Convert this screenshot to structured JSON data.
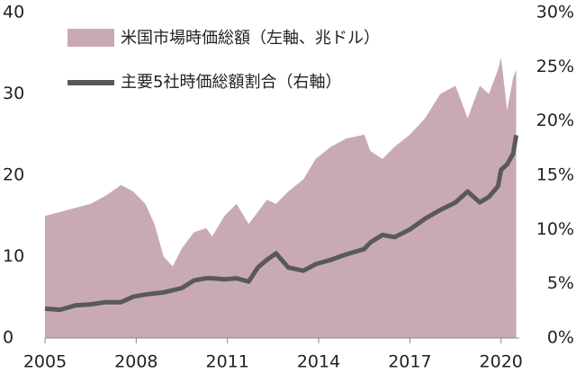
{
  "chart_data": {
    "type": "area_line",
    "x": [
      2005.0,
      2005.5,
      2006.0,
      2006.5,
      2007.0,
      2007.5,
      2007.9,
      2008.3,
      2008.6,
      2008.9,
      2009.2,
      2009.5,
      2009.9,
      2010.3,
      2010.5,
      2010.9,
      2011.3,
      2011.7,
      2012.0,
      2012.3,
      2012.6,
      2013.0,
      2013.5,
      2013.9,
      2014.4,
      2014.9,
      2015.5,
      2015.7,
      2016.1,
      2016.5,
      2017.0,
      2017.5,
      2018.0,
      2018.5,
      2018.9,
      2019.3,
      2019.6,
      2019.9,
      2020.0,
      2020.2,
      2020.4,
      2020.5
    ],
    "series": [
      {
        "name": "米国市場時価総額（左軸、兆ドル）",
        "color": "#c9aab4",
        "axis": "y",
        "values": [
          15,
          15.5,
          16,
          16.5,
          17.5,
          18.8,
          18,
          16.5,
          14,
          10,
          8.8,
          11,
          13,
          13.5,
          12.5,
          15,
          16.5,
          14,
          15.5,
          17,
          16.5,
          18,
          19.5,
          22,
          23.5,
          24.5,
          25,
          23,
          22,
          23.5,
          25,
          27,
          30,
          31,
          27,
          31,
          30,
          33,
          34.5,
          28,
          32,
          33
        ]
      },
      {
        "name": "主要5社時価総額割合（右軸）",
        "color": "#595959",
        "axis": "y2",
        "values": [
          2.7,
          2.6,
          3.0,
          3.1,
          3.3,
          3.3,
          3.8,
          4.0,
          4.1,
          4.2,
          4.4,
          4.6,
          5.3,
          5.5,
          5.5,
          5.4,
          5.5,
          5.2,
          6.5,
          7.2,
          7.8,
          6.5,
          6.2,
          6.8,
          7.2,
          7.7,
          8.2,
          8.8,
          9.5,
          9.3,
          10.0,
          11.0,
          11.8,
          12.5,
          13.5,
          12.5,
          13.0,
          14.0,
          15.5,
          16.0,
          17.0,
          18.7
        ]
      }
    ],
    "xlim": [
      2005,
      2020.6
    ],
    "xticks": [
      2005,
      2008,
      2011,
      2014,
      2017,
      2020
    ],
    "ylim": [
      0,
      40
    ],
    "yticks": [
      0,
      10,
      20,
      30,
      40
    ],
    "y2lim": [
      0,
      30
    ],
    "y2ticks": [
      {
        "value": 0,
        "label": "0%"
      },
      {
        "value": 5,
        "label": "5%"
      },
      {
        "value": 10,
        "label": "10%"
      },
      {
        "value": 15,
        "label": "15%"
      },
      {
        "value": 20,
        "label": "20%"
      },
      {
        "value": 25,
        "label": "25%"
      },
      {
        "value": 30,
        "label": "30%"
      }
    ]
  }
}
